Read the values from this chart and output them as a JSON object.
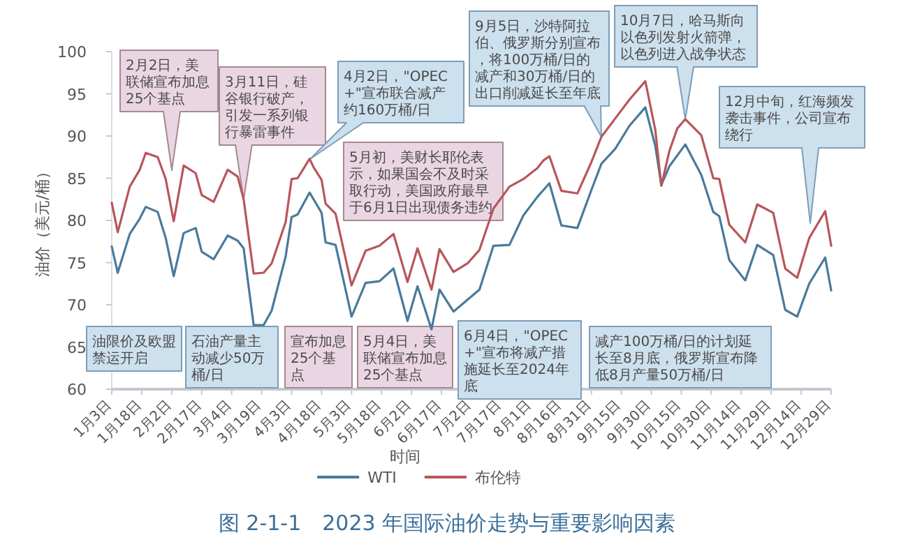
{
  "chart_data": {
    "type": "line",
    "xlabel": "时间",
    "ylabel": "油价（美元/桶）",
    "legend": "bottom",
    "x": [
      "2023-01-03",
      "2023-01-06",
      "2023-01-12",
      "2023-01-17",
      "2023-01-20",
      "2023-01-26",
      "2023-01-30",
      "2023-02-03",
      "2023-02-08",
      "2023-02-14",
      "2023-02-17",
      "2023-02-23",
      "2023-03-02",
      "2023-03-07",
      "2023-03-10",
      "2023-03-15",
      "2023-03-20",
      "2023-03-24",
      "2023-03-31",
      "2023-04-03",
      "2023-04-06",
      "2023-04-12",
      "2023-04-14",
      "2023-04-18",
      "2023-04-20",
      "2023-04-25",
      "2023-05-03",
      "2023-05-10",
      "2023-05-17",
      "2023-05-24",
      "2023-05-31",
      "2023-06-05",
      "2023-06-12",
      "2023-06-16",
      "2023-06-23",
      "2023-06-30",
      "2023-07-06",
      "2023-07-13",
      "2023-07-21",
      "2023-07-28",
      "2023-08-04",
      "2023-08-07",
      "2023-08-10",
      "2023-08-16",
      "2023-08-24",
      "2023-08-31",
      "2023-09-05",
      "2023-09-12",
      "2023-09-19",
      "2023-09-27",
      "2023-10-02",
      "2023-10-05",
      "2023-10-09",
      "2023-10-13",
      "2023-10-17",
      "2023-10-25",
      "2023-10-31",
      "2023-11-03",
      "2023-11-08",
      "2023-11-16",
      "2023-11-22",
      "2023-11-30",
      "2023-12-06",
      "2023-12-12",
      "2023-12-18",
      "2023-12-26",
      "2023-12-29"
    ],
    "series": [
      {
        "name": "WTI",
        "color": "#4a7a9b",
        "values": [
          76.9,
          73.8,
          78.4,
          80.2,
          81.6,
          81.0,
          77.9,
          73.4,
          78.5,
          79.1,
          76.3,
          75.4,
          78.2,
          77.6,
          76.7,
          67.6,
          67.6,
          69.3,
          75.7,
          80.4,
          80.7,
          83.3,
          82.5,
          80.9,
          77.4,
          77.1,
          68.6,
          72.6,
          72.8,
          74.3,
          68.1,
          72.2,
          67.1,
          71.8,
          69.2,
          70.6,
          71.8,
          77.0,
          77.1,
          80.6,
          82.8,
          83.6,
          84.4,
          79.4,
          79.1,
          83.6,
          86.7,
          88.5,
          91.2,
          93.4,
          88.8,
          84.2,
          86.4,
          87.7,
          89.0,
          85.4,
          81.0,
          80.5,
          75.3,
          72.9,
          77.1,
          75.9,
          69.4,
          68.6,
          72.5,
          75.6,
          71.7
        ]
      },
      {
        "name": "布伦特",
        "color": "#b8565c",
        "values": [
          82.1,
          78.6,
          84.0,
          86.0,
          88.0,
          87.5,
          84.9,
          79.9,
          86.5,
          85.6,
          83.0,
          82.2,
          86.0,
          85.2,
          82.5,
          73.7,
          73.8,
          74.9,
          79.8,
          84.9,
          85.0,
          87.3,
          86.3,
          84.8,
          82.0,
          80.8,
          72.3,
          76.4,
          77.0,
          78.4,
          72.7,
          76.7,
          71.8,
          76.6,
          73.9,
          74.9,
          76.5,
          81.4,
          84.0,
          84.9,
          86.2,
          87.1,
          87.6,
          83.5,
          83.2,
          86.9,
          89.9,
          92.1,
          94.3,
          96.5,
          90.7,
          84.1,
          88.2,
          90.9,
          92.0,
          90.1,
          85.0,
          84.9,
          79.5,
          77.4,
          81.9,
          80.9,
          74.3,
          73.2,
          77.9,
          81.1,
          77.0
        ]
      }
    ],
    "xlim": [
      "2023-01-03",
      "2023-12-29"
    ],
    "xticks": [
      {
        "value": "2023-01-03",
        "label": "1月3日"
      },
      {
        "value": "2023-01-18",
        "label": "1月18日"
      },
      {
        "value": "2023-02-02",
        "label": "2月2日"
      },
      {
        "value": "2023-02-17",
        "label": "2月17日"
      },
      {
        "value": "2023-03-04",
        "label": "3月4日"
      },
      {
        "value": "2023-03-19",
        "label": "3月19日"
      },
      {
        "value": "2023-04-03",
        "label": "4月3日"
      },
      {
        "value": "2023-04-18",
        "label": "4月18日"
      },
      {
        "value": "2023-05-03",
        "label": "5月3日"
      },
      {
        "value": "2023-05-18",
        "label": "5月18日"
      },
      {
        "value": "2023-06-02",
        "label": "6月2日"
      },
      {
        "value": "2023-06-17",
        "label": "6月17日"
      },
      {
        "value": "2023-07-02",
        "label": "7月2日"
      },
      {
        "value": "2023-07-17",
        "label": "7月17日"
      },
      {
        "value": "2023-08-01",
        "label": "8月1日"
      },
      {
        "value": "2023-08-16",
        "label": "8月16日"
      },
      {
        "value": "2023-08-31",
        "label": "8月31日"
      },
      {
        "value": "2023-09-15",
        "label": "9月15日"
      },
      {
        "value": "2023-09-30",
        "label": "9月30日"
      },
      {
        "value": "2023-10-15",
        "label": "10月15日"
      },
      {
        "value": "2023-10-30",
        "label": "10月30日"
      },
      {
        "value": "2023-11-14",
        "label": "11月14日"
      },
      {
        "value": "2023-11-29",
        "label": "11月29日"
      },
      {
        "value": "2023-12-14",
        "label": "12月14日"
      },
      {
        "value": "2023-12-29",
        "label": "12月29日"
      }
    ],
    "ylim": [
      60,
      100
    ],
    "yticks": [
      60,
      65,
      70,
      75,
      80,
      85,
      90,
      95,
      100
    ],
    "annotations": [
      "2月2日，美联储宣布加息25个基点",
      {
        "text": "3月11日，硅谷银行破产，引发一系列银行暴雷事件",
        "x": "2023-03-10",
        "y": 82.5
      },
      "4月2日，\"OPEC+\"宣布联合减产约160万桶/日",
      "5月初，美财长耶伦表示，如果国会不及时采取行动，美国政府最早于6月1日出现债务违约",
      {
        "text": "9月5日，沙特阿拉伯、俄罗斯分别宣布，将100万桶/日的减产和30万桶/日的出口削减延长至年底",
        "x": "2023-09-05",
        "y": 89.9
      },
      {
        "text": "10月7日，哈马斯向以色列发射火箭弹，以色列进入战争状态",
        "x": "2023-10-17",
        "y": 92.0
      },
      "12月中旬，红海频发袭击事件，公司宣布绕行",
      "油限价及欧盟禁运开启",
      "石油产量主动减少50万桶/日",
      "宣布加息25个基点",
      "5月4日，美联储宣布加息25个基点",
      "6月4日，\"OPEC+\"宣布将减产措施延长至2024年底",
      "减产100万桶/日的计划延长至8月底，俄罗斯宣布降低8月产量50万桶/日",
      "图 2-1-1　2023 年国际油价走势与重要影响因素"
    ]
  }
}
